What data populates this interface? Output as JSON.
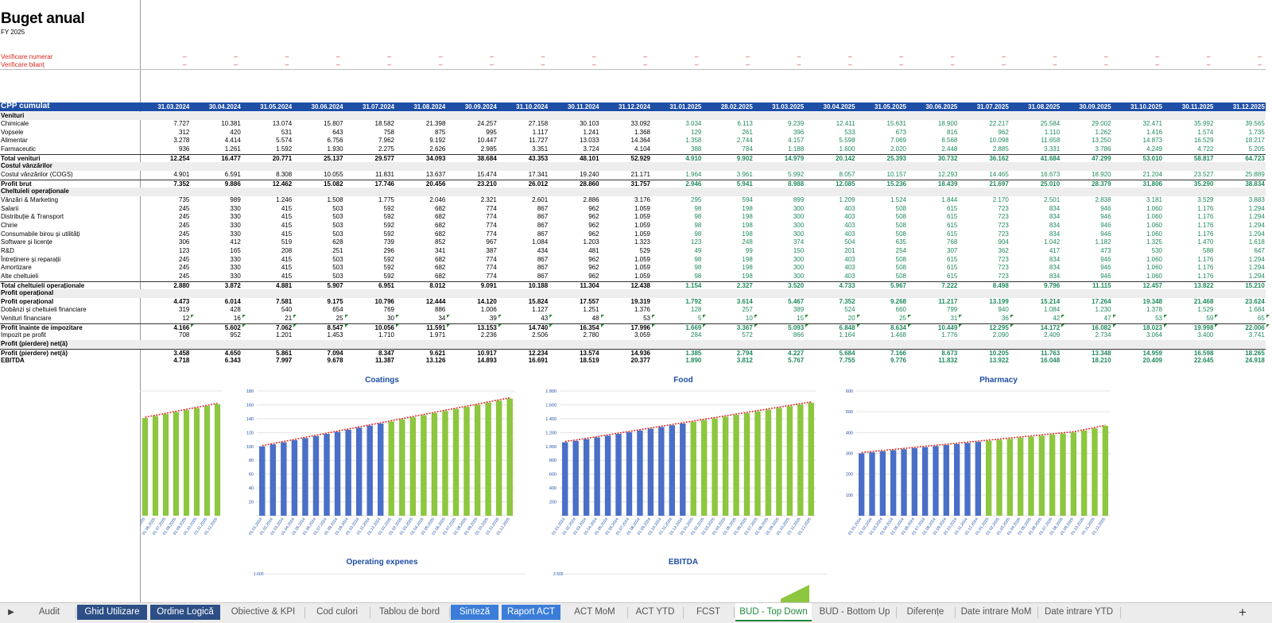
{
  "sheet": {
    "title": "Buget anual",
    "subtitle": "FY 2025",
    "check_numerar_label": "Verificare numerar",
    "check_bilant_label": "Verificare bilanț",
    "check_mark": "–",
    "header_label": "CPP cumulat",
    "dates": [
      "31.03.2024",
      "30.04.2024",
      "31.05.2024",
      "30.06.2024",
      "31.07.2024",
      "31.08.2024",
      "30.09.2024",
      "31.10.2024",
      "30.11.2024",
      "31.12.2024",
      "31.01.2025",
      "28.02.2025",
      "31.03.2025",
      "30.04.2025",
      "31.05.2025",
      "30.06.2025",
      "31.07.2025",
      "31.08.2025",
      "30.09.2025",
      "31.10.2025",
      "30.11.2025",
      "31.12.2025"
    ],
    "rows": [
      {
        "label": "Venituri",
        "type": "sec",
        "values": []
      },
      {
        "label": "Chimicale",
        "type": "row",
        "values": [
          "7.727",
          "10.381",
          "13.074",
          "15.807",
          "18.582",
          "21.398",
          "24.257",
          "27.158",
          "30.103",
          "33.092",
          "3.034",
          "6.113",
          "9.239",
          "12.411",
          "15.631",
          "18.900",
          "22.217",
          "25.584",
          "29.002",
          "32.471",
          "35.992",
          "39.565"
        ]
      },
      {
        "label": "Vopsele",
        "type": "row",
        "values": [
          "312",
          "420",
          "531",
          "643",
          "758",
          "875",
          "995",
          "1.117",
          "1.241",
          "1.368",
          "129",
          "261",
          "396",
          "533",
          "673",
          "816",
          "962",
          "1.110",
          "1.262",
          "1.416",
          "1.574",
          "1.735"
        ]
      },
      {
        "label": "Alimentar",
        "type": "row",
        "values": [
          "3.278",
          "4.414",
          "5.574",
          "6.756",
          "7.962",
          "9.192",
          "10.447",
          "11.727",
          "13.033",
          "14.364",
          "1.358",
          "2.744",
          "4.157",
          "5.598",
          "7.069",
          "8.568",
          "10.098",
          "11.658",
          "13.250",
          "14.873",
          "16.529",
          "18.217"
        ]
      },
      {
        "label": "Farmaceutic",
        "type": "row",
        "values": [
          "936",
          "1.261",
          "1.592",
          "1.930",
          "2.275",
          "2.626",
          "2.985",
          "3.351",
          "3.724",
          "4.104",
          "388",
          "784",
          "1.188",
          "1.600",
          "2.020",
          "2.448",
          "2.885",
          "3.331",
          "3.786",
          "4.249",
          "4.722",
          "5.205"
        ]
      },
      {
        "label": "Total venituri",
        "type": "tot",
        "values": [
          "12.254",
          "16.477",
          "20.771",
          "25.137",
          "29.577",
          "34.093",
          "38.684",
          "43.353",
          "48.101",
          "52.929",
          "4.910",
          "9.902",
          "14.979",
          "20.142",
          "25.393",
          "30.732",
          "36.162",
          "41.684",
          "47.299",
          "53.010",
          "58.817",
          "64.723"
        ]
      },
      {
        "label": "Costul vânzărilor",
        "type": "sec",
        "values": []
      },
      {
        "label": "Costul vânzărilor (COGS)",
        "type": "row",
        "values": [
          "4.901",
          "6.591",
          "8.308",
          "10.055",
          "11.831",
          "13.637",
          "15.474",
          "17.341",
          "19.240",
          "21.171",
          "1.964",
          "3.961",
          "5.992",
          "8.057",
          "10.157",
          "12.293",
          "14.465",
          "16.673",
          "18.920",
          "21.204",
          "23.527",
          "25.889"
        ]
      },
      {
        "label": "Profit brut",
        "type": "tot",
        "values": [
          "7.352",
          "9.886",
          "12.462",
          "15.082",
          "17.746",
          "20.456",
          "23.210",
          "26.012",
          "28.860",
          "31.757",
          "2.946",
          "5.941",
          "8.988",
          "12.085",
          "15.236",
          "18.439",
          "21.697",
          "25.010",
          "28.379",
          "31.806",
          "35.290",
          "38.834"
        ]
      },
      {
        "label": "Cheltuieli operaționale",
        "type": "sec",
        "values": []
      },
      {
        "label": "Vânzări & Marketing",
        "type": "row",
        "values": [
          "735",
          "989",
          "1.246",
          "1.508",
          "1.775",
          "2.046",
          "2.321",
          "2.601",
          "2.886",
          "3.176",
          "295",
          "594",
          "899",
          "1.209",
          "1.524",
          "1.844",
          "2.170",
          "2.501",
          "2.838",
          "3.181",
          "3.529",
          "3.883"
        ]
      },
      {
        "label": "Salarii",
        "type": "row",
        "values": [
          "245",
          "330",
          "415",
          "503",
          "592",
          "682",
          "774",
          "867",
          "962",
          "1.059",
          "98",
          "198",
          "300",
          "403",
          "508",
          "615",
          "723",
          "834",
          "946",
          "1.060",
          "1.176",
          "1.294"
        ]
      },
      {
        "label": "Distribuție & Transport",
        "type": "row",
        "values": [
          "245",
          "330",
          "415",
          "503",
          "592",
          "682",
          "774",
          "867",
          "962",
          "1.059",
          "98",
          "198",
          "300",
          "403",
          "508",
          "615",
          "723",
          "834",
          "946",
          "1.060",
          "1.176",
          "1.294"
        ]
      },
      {
        "label": "Chirie",
        "type": "row",
        "values": [
          "245",
          "330",
          "415",
          "503",
          "592",
          "682",
          "774",
          "867",
          "962",
          "1.059",
          "98",
          "198",
          "300",
          "403",
          "508",
          "615",
          "723",
          "834",
          "946",
          "1.060",
          "1.176",
          "1.294"
        ]
      },
      {
        "label": "Consumabile birou și utilități",
        "type": "row",
        "values": [
          "245",
          "330",
          "415",
          "503",
          "592",
          "682",
          "774",
          "867",
          "962",
          "1.059",
          "98",
          "198",
          "300",
          "403",
          "508",
          "615",
          "723",
          "834",
          "946",
          "1.060",
          "1.176",
          "1.294"
        ]
      },
      {
        "label": "Software și licențe",
        "type": "row",
        "values": [
          "306",
          "412",
          "519",
          "628",
          "739",
          "852",
          "967",
          "1.084",
          "1.203",
          "1.323",
          "123",
          "248",
          "374",
          "504",
          "635",
          "768",
          "904",
          "1.042",
          "1.182",
          "1.325",
          "1.470",
          "1.618"
        ]
      },
      {
        "label": "R&D",
        "type": "row",
        "values": [
          "123",
          "165",
          "208",
          "251",
          "296",
          "341",
          "387",
          "434",
          "481",
          "529",
          "49",
          "99",
          "150",
          "201",
          "254",
          "307",
          "362",
          "417",
          "473",
          "530",
          "588",
          "647"
        ]
      },
      {
        "label": "Întreținere și reparații",
        "type": "row",
        "values": [
          "245",
          "330",
          "415",
          "503",
          "592",
          "682",
          "774",
          "867",
          "962",
          "1.059",
          "98",
          "198",
          "300",
          "403",
          "508",
          "615",
          "723",
          "834",
          "946",
          "1.060",
          "1.176",
          "1.294"
        ]
      },
      {
        "label": "Amortizare",
        "type": "row",
        "values": [
          "245",
          "330",
          "415",
          "503",
          "592",
          "682",
          "774",
          "867",
          "962",
          "1.059",
          "98",
          "198",
          "300",
          "403",
          "508",
          "615",
          "723",
          "834",
          "946",
          "1.060",
          "1.176",
          "1.294"
        ]
      },
      {
        "label": "Alte cheltuieli",
        "type": "row",
        "values": [
          "245",
          "330",
          "415",
          "503",
          "592",
          "682",
          "774",
          "867",
          "962",
          "1.059",
          "98",
          "198",
          "300",
          "403",
          "508",
          "615",
          "723",
          "834",
          "946",
          "1.060",
          "1.176",
          "1.294"
        ]
      },
      {
        "label": "Total cheltuieli operaționale",
        "type": "tot",
        "values": [
          "2.880",
          "3.872",
          "4.881",
          "5.907",
          "6.951",
          "8.012",
          "9.091",
          "10.188",
          "11.304",
          "12.438",
          "1.154",
          "2.327",
          "3.520",
          "4.733",
          "5.967",
          "7.222",
          "8.498",
          "9.796",
          "11.115",
          "12.457",
          "13.822",
          "15.210"
        ]
      },
      {
        "label": "Profit operațional",
        "type": "sec",
        "values": []
      },
      {
        "label": "Profit operațional",
        "type": "bold",
        "values": [
          "4.473",
          "6.014",
          "7.581",
          "9.175",
          "10.796",
          "12.444",
          "14.120",
          "15.824",
          "17.557",
          "19.319",
          "1.792",
          "3.614",
          "5.467",
          "7.352",
          "9.268",
          "11.217",
          "13.199",
          "15.214",
          "17.264",
          "19.348",
          "21.468",
          "23.624"
        ]
      },
      {
        "label": "Dobânzi și cheltuieli financiare",
        "type": "row",
        "values": [
          "319",
          "428",
          "540",
          "654",
          "769",
          "886",
          "1.006",
          "1.127",
          "1.251",
          "1.376",
          "128",
          "257",
          "389",
          "524",
          "660",
          "799",
          "940",
          "1.084",
          "1.230",
          "1.378",
          "1.529",
          "1.684"
        ]
      },
      {
        "label": "Venituri financiare",
        "type": "row",
        "values": [
          "12",
          "16",
          "21",
          "25",
          "30",
          "34",
          "39",
          "43",
          "48",
          "53",
          "5",
          "10",
          "15",
          "20",
          "25",
          "31",
          "36",
          "42",
          "47",
          "53",
          "59",
          "65"
        ],
        "flags": true
      },
      {
        "label": "Profit înainte de impozitare",
        "type": "tot",
        "values": [
          "4.166",
          "5.602",
          "7.062",
          "8.547",
          "10.056",
          "11.591",
          "13.153",
          "14.740",
          "16.354",
          "17.996",
          "1.669",
          "3.367",
          "5.093",
          "6.848",
          "8.634",
          "10.449",
          "12.295",
          "14.172",
          "16.082",
          "18.023",
          "19.998",
          "22.006"
        ],
        "flags": true
      },
      {
        "label": "Impozit pe profit",
        "type": "row",
        "values": [
          "708",
          "952",
          "1.201",
          "1.453",
          "1.710",
          "1.971",
          "2.236",
          "2.506",
          "2.780",
          "3.059",
          "284",
          "572",
          "866",
          "1.164",
          "1.468",
          "1.776",
          "2.090",
          "2.409",
          "2.734",
          "3.064",
          "3.400",
          "3.741"
        ]
      },
      {
        "label": "Profit (pierdere) net(ă)",
        "type": "sec",
        "values": []
      },
      {
        "label": "Profit (pierdere) net(ă)",
        "type": "tot",
        "values": [
          "3.458",
          "4.650",
          "5.861",
          "7.094",
          "8.347",
          "9.621",
          "10.917",
          "12.234",
          "13.574",
          "14.936",
          "1.385",
          "2.794",
          "4.227",
          "5.684",
          "7.166",
          "8.673",
          "10.205",
          "11.763",
          "13.348",
          "14.959",
          "16.598",
          "18.265"
        ]
      },
      {
        "label": "EBITDA",
        "type": "bold",
        "values": [
          "4.718",
          "6.343",
          "7.997",
          "9.678",
          "11.387",
          "13.126",
          "14.893",
          "16.691",
          "18.519",
          "20.377",
          "1.890",
          "3.812",
          "5.767",
          "7.755",
          "9.776",
          "11.832",
          "13.922",
          "16.048",
          "18.210",
          "20.409",
          "22.645",
          "24.918"
        ]
      }
    ]
  },
  "chart_data": [
    {
      "type": "bar",
      "title": "Coatings",
      "categories": [
        "01.01.2024",
        "01.02.2024",
        "01.03.2024",
        "01.04.2024",
        "01.05.2024",
        "01.06.2024",
        "01.07.2024",
        "01.08.2024",
        "01.09.2024",
        "01.10.2024",
        "01.11.2024",
        "01.12.2024",
        "01.01.2025",
        "01.02.2025",
        "01.03.2025",
        "01.04.2025",
        "01.05.2025",
        "01.06.2025",
        "01.07.2025",
        "01.08.2025",
        "01.09.2025",
        "01.10.2025",
        "01.11.2025",
        "01.12.2025"
      ],
      "series": [
        {
          "values": [
            100,
            103,
            106,
            109,
            112,
            115,
            118,
            121,
            124,
            127,
            130,
            133,
            136,
            139,
            142,
            145,
            148,
            151,
            154,
            157,
            160,
            163,
            166,
            169
          ]
        }
      ],
      "actual_color": "#4a6fc7",
      "budget_color": "#8dc63f",
      "trend_color": "#d9342b",
      "ylim": [
        0,
        180
      ],
      "yticks": [
        "",
        "20",
        "40",
        "60",
        "80",
        "100",
        "120",
        "140",
        "160",
        "180"
      ]
    },
    {
      "type": "bar",
      "title": "Food",
      "categories": [
        "01.01.2024",
        "01.02.2024",
        "01.03.2024",
        "01.04.2024",
        "01.05.2024",
        "01.06.2024",
        "01.07.2024",
        "01.08.2024",
        "01.09.2024",
        "01.10.2024",
        "01.11.2024",
        "01.12.2024",
        "01.01.2025",
        "01.02.2025",
        "01.03.2025",
        "01.04.2025",
        "01.05.2025",
        "01.06.2025",
        "01.07.2025",
        "01.08.2025",
        "01.09.2025",
        "01.10.2025",
        "01.11.2025",
        "01.12.2025"
      ],
      "series": [
        {
          "values": [
            1060,
            1080,
            1105,
            1130,
            1155,
            1180,
            1205,
            1230,
            1255,
            1280,
            1305,
            1330,
            1355,
            1380,
            1405,
            1430,
            1455,
            1480,
            1505,
            1530,
            1555,
            1580,
            1605,
            1630
          ]
        }
      ],
      "actual_color": "#4a6fc7",
      "budget_color": "#8dc63f",
      "trend_color": "#d9342b",
      "ylim": [
        0,
        1800
      ],
      "yticks": [
        "",
        "200",
        "400",
        "600",
        "800",
        "1.000",
        "1.200",
        "1.400",
        "1.600",
        "1.800"
      ]
    },
    {
      "type": "bar",
      "title": "Pharmacy",
      "categories": [
        "01.01.2024",
        "01.02.2024",
        "01.03.2024",
        "01.04.2024",
        "01.05.2024",
        "01.06.2024",
        "01.07.2024",
        "01.08.2024",
        "01.09.2024",
        "01.10.2024",
        "01.11.2024",
        "01.12.2024",
        "01.01.2025",
        "01.02.2025",
        "01.03.2025",
        "01.04.2025",
        "01.05.2025",
        "01.06.2025",
        "01.07.2025",
        "01.08.2025",
        "01.09.2025",
        "01.10.2025",
        "01.11.2025",
        "01.12.2025"
      ],
      "series": [
        {
          "values": [
            300,
            305,
            310,
            315,
            320,
            325,
            330,
            335,
            340,
            345,
            350,
            355,
            360,
            365,
            370,
            375,
            380,
            385,
            390,
            395,
            400,
            410,
            420,
            432
          ]
        }
      ],
      "actual_color": "#4a6fc7",
      "budget_color": "#8dc63f",
      "trend_color": "#d9342b",
      "ylim": [
        0,
        600
      ],
      "yticks": [
        "",
        "100",
        "200",
        "300",
        "400",
        "500",
        "600"
      ]
    },
    {
      "type": "bar",
      "title": "Operating expenes",
      "yticks": [
        "1.600"
      ]
    },
    {
      "type": "bar",
      "title": "EBITDA",
      "yticks": [
        "2.500"
      ]
    }
  ],
  "tabs": [
    {
      "label": "Audit",
      "style": "plain"
    },
    {
      "label": "Ghid Utilizare",
      "style": "dark"
    },
    {
      "label": "Ordine Logică",
      "style": "dark"
    },
    {
      "label": "Obiective & KPI",
      "style": "plain"
    },
    {
      "label": "Cod culori",
      "style": "plain"
    },
    {
      "label": "Tablou de bord",
      "style": "plain"
    },
    {
      "label": "Sinteză",
      "style": "blue"
    },
    {
      "label": "Raport ACT",
      "style": "blue"
    },
    {
      "label": "ACT MoM",
      "style": "plain"
    },
    {
      "label": "ACT YTD",
      "style": "plain"
    },
    {
      "label": "FCST",
      "style": "plain"
    },
    {
      "label": "BUD - Top Down",
      "style": "active"
    },
    {
      "label": "BUD - Bottom Up",
      "style": "plain"
    },
    {
      "label": "Diferențe",
      "style": "plain"
    },
    {
      "label": "Date intrare MoM",
      "style": "plain"
    },
    {
      "label": "Date intrare YTD",
      "style": "plain"
    }
  ],
  "tabbar": {
    "nav_icon": "▶",
    "add_icon": "+"
  }
}
